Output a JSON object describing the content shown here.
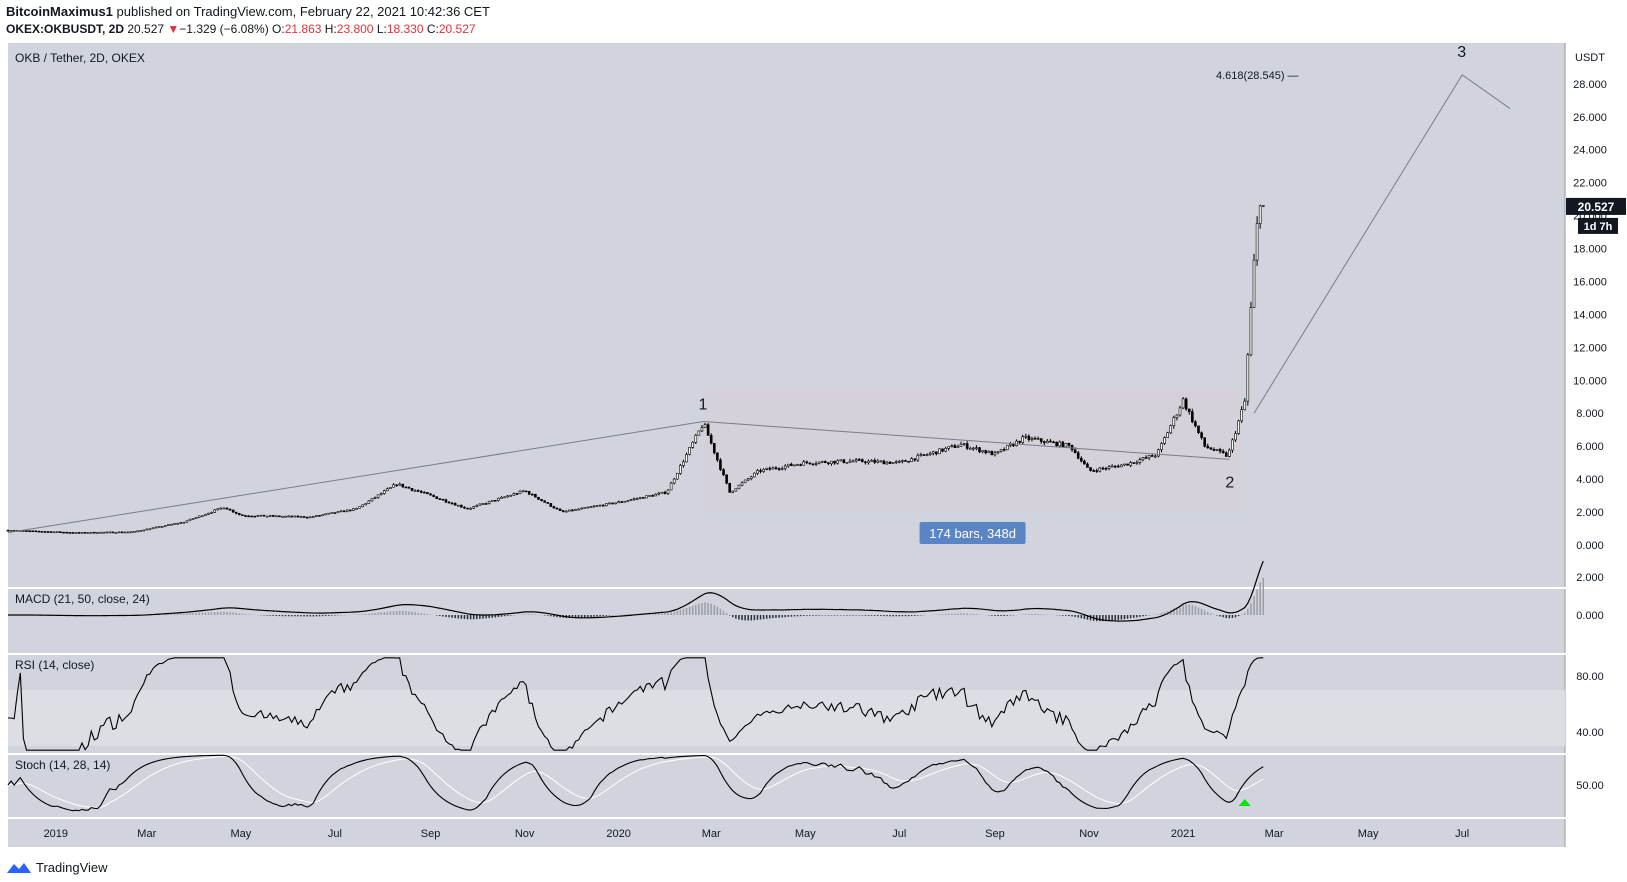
{
  "header": {
    "publisher": "BitcoinMaximus1",
    "published_text": " published on TradingView.com, February 22, 2021 10:42:36 CET",
    "symbol": "OKEX:OKBUSDT, 2D",
    "last": "20.527",
    "change_arrow": "▼",
    "change": "−1.329 (−6.08%)",
    "o_label": "O:",
    "o": "21.863",
    "h_label": "H:",
    "h": "23.800",
    "l_label": "L:",
    "l": "18.330",
    "c_label": "C:",
    "c": "20.527"
  },
  "chart_title": "OKB / Tether, 2D, OKEX",
  "price_axis": {
    "currency": "USDT",
    "ticks": [
      "0.000",
      "2.000",
      "4.000",
      "6.000",
      "8.000",
      "10.000",
      "12.000",
      "14.000",
      "16.000",
      "18.000",
      "20.000",
      "22.000",
      "24.000",
      "26.000",
      "28.000"
    ],
    "last_price_label": "20.527",
    "countdown_label": "1d 7h"
  },
  "annotations": {
    "fib_label": "4.618(28.545) —",
    "wave_1": "1",
    "wave_2": "2",
    "wave_3": "3",
    "range_label": "174 bars, 348d"
  },
  "indicators": {
    "macd_title": "MACD (21, 50, close, 24)",
    "macd_ticks": [
      "2.000",
      "0.000"
    ],
    "rsi_title": "RSI (14, close)",
    "rsi_ticks": [
      "80.00",
      "40.00"
    ],
    "stoch_title": "Stoch (14, 28, 14)",
    "stoch_ticks": [
      "50.00"
    ]
  },
  "time_axis": [
    "2019",
    "Mar",
    "May",
    "Jul",
    "Sep",
    "Nov",
    "2020",
    "Mar",
    "May",
    "Jul",
    "Sep",
    "Nov",
    "2021",
    "Mar",
    "May",
    "Jul"
  ],
  "footer": {
    "brand": "TradingView"
  },
  "colors": {
    "panel_bg": "#d1d4dc",
    "candle": "#000000",
    "range_box": "#d6cfd9",
    "badge": "#5b84c4",
    "last_price_bg": "#131722",
    "signal_arrow": "#00e600"
  },
  "chart_data": {
    "type": "candlestick",
    "title": "OKB / Tether, 2D, OKEX",
    "ylabel": "USDT",
    "ylim": [
      0,
      28.5
    ],
    "x_range": [
      "2018-12-01",
      "2021-08-01"
    ],
    "series": [
      {
        "name": "price (approx. closes)",
        "points": [
          {
            "x": "2018-12-01",
            "y": 0.9
          },
          {
            "x": "2019-01-15",
            "y": 0.75
          },
          {
            "x": "2019-02-20",
            "y": 0.8
          },
          {
            "x": "2019-03-25",
            "y": 1.4
          },
          {
            "x": "2019-04-20",
            "y": 2.3
          },
          {
            "x": "2019-05-01",
            "y": 1.8
          },
          {
            "x": "2019-06-15",
            "y": 1.7
          },
          {
            "x": "2019-07-15",
            "y": 2.2
          },
          {
            "x": "2019-08-10",
            "y": 3.7
          },
          {
            "x": "2019-09-01",
            "y": 3.0
          },
          {
            "x": "2019-09-25",
            "y": 2.2
          },
          {
            "x": "2019-11-01",
            "y": 3.3
          },
          {
            "x": "2019-11-25",
            "y": 2.0
          },
          {
            "x": "2020-01-01",
            "y": 2.6
          },
          {
            "x": "2020-02-01",
            "y": 3.2
          },
          {
            "x": "2020-02-25",
            "y": 7.4
          },
          {
            "x": "2020-03-13",
            "y": 3.2
          },
          {
            "x": "2020-04-01",
            "y": 4.5
          },
          {
            "x": "2020-05-01",
            "y": 5.0
          },
          {
            "x": "2020-06-01",
            "y": 5.1
          },
          {
            "x": "2020-07-01",
            "y": 5.0
          },
          {
            "x": "2020-08-10",
            "y": 6.1
          },
          {
            "x": "2020-09-01",
            "y": 5.5
          },
          {
            "x": "2020-09-20",
            "y": 6.5
          },
          {
            "x": "2020-10-20",
            "y": 6.0
          },
          {
            "x": "2020-11-01",
            "y": 4.5
          },
          {
            "x": "2020-11-25",
            "y": 4.9
          },
          {
            "x": "2020-12-15",
            "y": 5.5
          },
          {
            "x": "2021-01-01",
            "y": 8.8
          },
          {
            "x": "2021-01-15",
            "y": 6.0
          },
          {
            "x": "2021-01-30",
            "y": 5.4
          },
          {
            "x": "2021-02-10",
            "y": 8.7
          },
          {
            "x": "2021-02-17",
            "y": 18.5
          },
          {
            "x": "2021-02-21",
            "y": 21.9
          },
          {
            "x": "2021-02-22",
            "y": 20.527
          }
        ]
      },
      {
        "name": "wave count",
        "points": [
          {
            "x": "2020-02-25",
            "y": 7.5,
            "label": "1"
          },
          {
            "x": "2021-01-31",
            "y": 5.2,
            "label": "2"
          },
          {
            "x": "2021-07-01",
            "y": 28.545,
            "label": "3"
          }
        ]
      }
    ],
    "range_measure": {
      "from": "2020-02-25",
      "to": "2021-02-08",
      "bars": 174,
      "days": 348,
      "low": 2.0,
      "high": 9.5
    },
    "macd_ylim": [
      -0.2,
      2.2
    ],
    "rsi_ylim": [
      25,
      95
    ],
    "rsi_band": [
      30,
      70
    ],
    "stoch_ylim": [
      0,
      100
    ]
  }
}
